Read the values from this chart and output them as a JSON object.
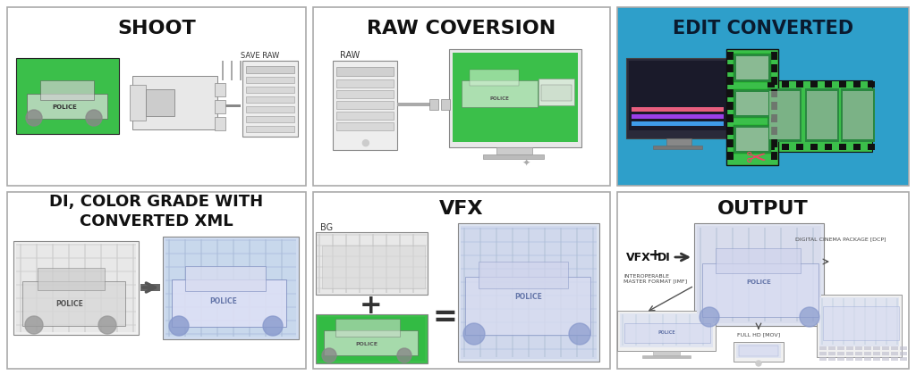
{
  "bg_color": "#f5f5f5",
  "edit_converted_bg": "#2e9fca",
  "green_color": "#3bbf4a",
  "title_shoot": "SHOOT",
  "title_raw": "RAW COVERSION",
  "title_edit": "EDIT CONVERTED",
  "title_di": "DI, COLOR GRADE WITH\nCONVERTED XML",
  "title_vfx": "VFX",
  "title_output": "OUTPUT",
  "save_raw": "SAVE RAW",
  "raw_label": "RAW",
  "bg_label": "BG",
  "vfx_di": "VFX",
  "plus": "+",
  "equals": "=",
  "imf_label": "INTEROPERABLE\nMASTER FORMAT [IMF]",
  "mov_label": "FULL HD [MOV]",
  "dcp_label": "DIGITAL CINEMA PACKAGE [DCP]",
  "panel_edge": "#aaaaaa",
  "sketch_light": "#d8d8d8",
  "sketch_mid": "#b0b0b0",
  "sketch_dark": "#888888",
  "blue_tint": "#c8d8f0",
  "imf_arrow_col": "#666666"
}
